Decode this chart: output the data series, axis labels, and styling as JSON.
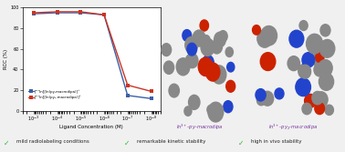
{
  "blue_x": [
    0.001,
    0.0001,
    1e-05,
    1e-06,
    1e-07,
    1e-08
  ],
  "blue_y": [
    94,
    95,
    95,
    93,
    15,
    12
  ],
  "red_x": [
    0.001,
    0.0001,
    1e-05,
    1e-06,
    1e-07,
    1e-08
  ],
  "red_y": [
    95,
    96,
    96,
    93,
    25,
    19
  ],
  "blue_color": "#3a5fa8",
  "red_color": "#cc3322",
  "xlabel": "Ligand Concentration (M)",
  "ylabel": "RCC (%)",
  "ylim": [
    0,
    100
  ],
  "legend_blue": "[¹¹¹In][In(py-macrodipa)]⁺",
  "legend_red": "[¹¹¹In][In(py₂-macrodipa)]⁺",
  "check_color": "#33bb33",
  "text1": "mild radiolabeling conditions",
  "text2": "remarkable kinetic stability",
  "text3": "high in vivo stability",
  "bg_color": "#f0f0f0",
  "plot_bg": "#ffffff",
  "label_color": "#7730a0",
  "label1": "In$^{3+}$-py-macrodipa",
  "label2": "In$^{3+}$-py$_2$-macrodipa",
  "mol1_bg": "#d8d8d8",
  "mol2_bg": "#d8d8d8"
}
